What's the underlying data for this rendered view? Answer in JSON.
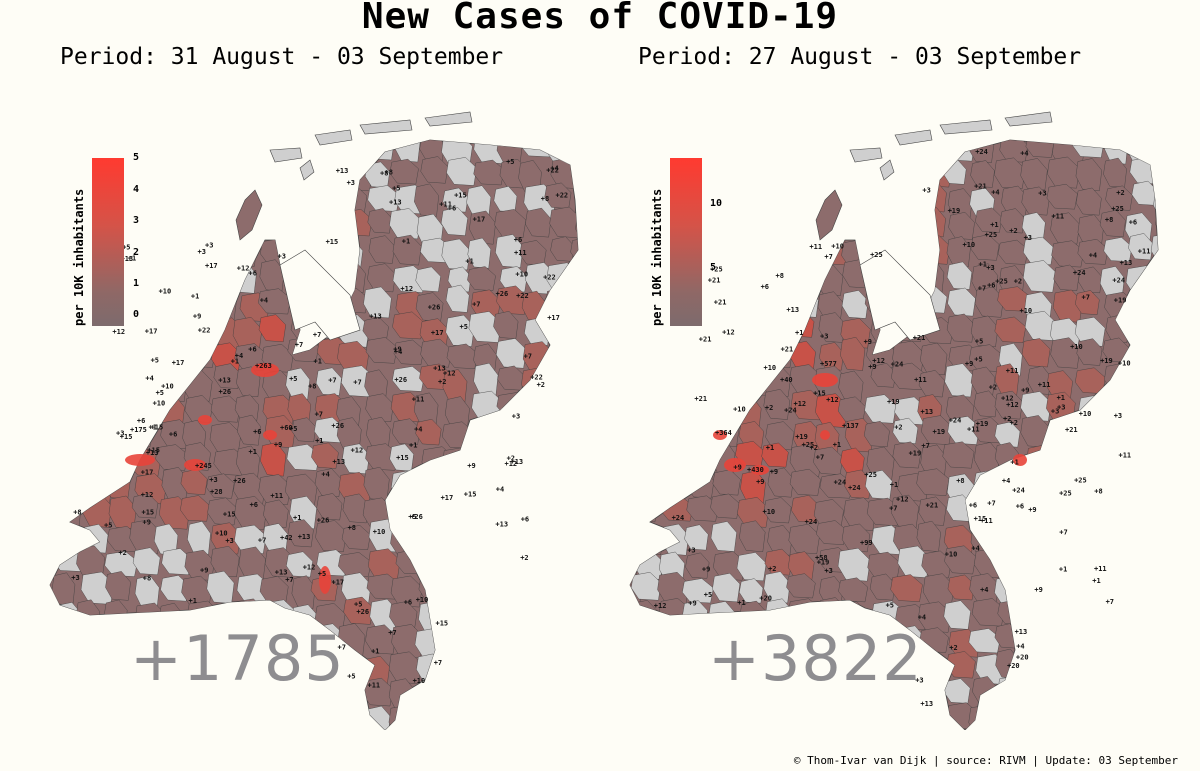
{
  "title": "New Cases of COVID-19",
  "footer": "© Thom-Ivar van Dijk | source: RIVM | Update: 03 September",
  "maps": [
    {
      "period": "Period: 31 August - 03 September",
      "total": "+1785",
      "legend_label": "per 10K inhabitants",
      "legend_ticks": [
        "5",
        "4",
        "3",
        "2",
        "1",
        "0"
      ],
      "hot_labels": [
        "+263",
        "+245",
        "+175",
        "+60",
        "+42",
        "+28"
      ],
      "small_labels": [
        "+1",
        "+2",
        "+3",
        "+4",
        "+5",
        "+6",
        "+7",
        "+8",
        "+9",
        "+10",
        "+11",
        "+12",
        "+13",
        "+15",
        "+17",
        "+22",
        "+26"
      ]
    },
    {
      "period": "Period: 27 August - 03 September",
      "total": "+3822",
      "legend_label": "per 10K inhabitants",
      "legend_ticks": [
        "10",
        "5"
      ],
      "hot_labels": [
        "+577",
        "+430",
        "+364",
        "+137",
        "+99",
        "+58",
        "+40"
      ],
      "small_labels": [
        "+1",
        "+2",
        "+3",
        "+4",
        "+5",
        "+6",
        "+7",
        "+8",
        "+9",
        "+10",
        "+11",
        "+12",
        "+13",
        "+15",
        "+19",
        "+20",
        "+21",
        "+24",
        "+25"
      ]
    }
  ]
}
